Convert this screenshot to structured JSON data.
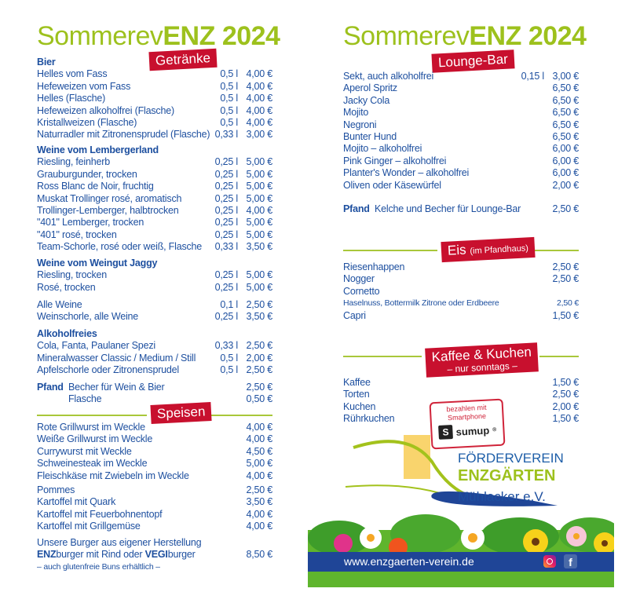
{
  "colors": {
    "title_green": "#9dc11d",
    "text_blue": "#1d4f9f",
    "banner_red": "#c8102e",
    "footer_blue": "#1f4597"
  },
  "left": {
    "title": {
      "light": "Sommerev",
      "bold": "ENZ 2024"
    },
    "banner_drinks": "Getränke",
    "banner_food": "Speisen",
    "groups": [
      {
        "heading": "Bier",
        "items": [
          {
            "name": "Helles vom Fass",
            "vol": "0,5 l",
            "price": "4,00 €"
          },
          {
            "name": "Hefeweizen vom Fass",
            "vol": "0,5 l",
            "price": "4,00 €"
          },
          {
            "name": "Helles (Flasche)",
            "vol": "0,5 l",
            "price": "4,00 €"
          },
          {
            "name": "Hefeweizen alkoholfrei (Flasche)",
            "vol": "0,5 l",
            "price": "4,00 €"
          },
          {
            "name": "Kristallweizen (Flasche)",
            "vol": "0,5 l",
            "price": "4,00 €"
          },
          {
            "name": "Naturradler mit Zitronensprudel (Flasche)",
            "vol": "0,33 l",
            "price": "3,00 €"
          }
        ]
      },
      {
        "heading": "Weine vom Lembergerland",
        "items": [
          {
            "name": "Riesling, feinherb",
            "vol": "0,25 l",
            "price": "5,00 €"
          },
          {
            "name": "Grauburgunder, trocken",
            "vol": "0,25 l",
            "price": "5,00 €"
          },
          {
            "name": "Ross Blanc de Noir, fruchtig",
            "vol": "0,25 l",
            "price": "5,00 €"
          },
          {
            "name": "Muskat Trollinger rosé, aromatisch",
            "vol": "0,25 l",
            "price": "5,00 €"
          },
          {
            "name": "Trollinger-Lemberger, halbtrocken",
            "vol": "0,25 l",
            "price": "4,00 €"
          },
          {
            "name": "\"401\" Lemberger, trocken",
            "vol": "0,25 l",
            "price": "5,00 €"
          },
          {
            "name": "\"401\" rosé, trocken",
            "vol": "0,25 l",
            "price": "5,00 €"
          },
          {
            "name": "Team-Schorle, rosé oder weiß, Flasche",
            "vol": "0,33 l",
            "price": "3,50 €"
          }
        ]
      },
      {
        "heading": "Weine vom Weingut Jaggy",
        "items": [
          {
            "name": "Riesling, trocken",
            "vol": "0,25 l",
            "price": "5,00 €"
          },
          {
            "name": "Rosé, trocken",
            "vol": "0,25 l",
            "price": "5,00 €"
          }
        ]
      },
      {
        "heading": "",
        "items": [
          {
            "name": "Alle Weine",
            "vol": "0,1 l",
            "price": "2,50 €"
          },
          {
            "name": "Weinschorle, alle Weine",
            "vol": "0,25 l",
            "price": "3,50 €"
          }
        ]
      },
      {
        "heading": "Alkoholfreies",
        "items": [
          {
            "name": "Cola, Fanta, Paulaner Spezi",
            "vol": "0,33 l",
            "price": "2,50 €"
          },
          {
            "name": "Mineralwasser Classic / Medium / Still",
            "vol": "0,5 l",
            "price": "2,00 €"
          },
          {
            "name": "Apfelschorle oder Zitronensprudel",
            "vol": "0,5 l",
            "price": "2,50 €"
          }
        ]
      }
    ],
    "pfand": {
      "label": "Pfand",
      "items": [
        {
          "name": "Becher für Wein & Bier",
          "price": "2,50 €"
        },
        {
          "name": "Flasche",
          "price": "0,50 €"
        }
      ]
    },
    "food_groups": [
      {
        "items": [
          {
            "name": "Rote Grillwurst im Weckle",
            "price": "4,00 €"
          },
          {
            "name": "Weiße Grillwurst im Weckle",
            "price": "4,00 €"
          },
          {
            "name": "Currywurst mit Weckle",
            "price": "4,50 €"
          },
          {
            "name": "Schweinesteak im Weckle",
            "price": "5,00 €"
          },
          {
            "name": "Fleischkäse mit Zwiebeln im Weckle",
            "price": "4,00 €"
          }
        ]
      },
      {
        "items": [
          {
            "name": "Pommes",
            "price": "2,50 €"
          },
          {
            "name": "Kartoffel mit Quark",
            "price": "3,50 €"
          },
          {
            "name": "Kartoffel mit Feuerbohnentopf",
            "price": "4,00 €"
          },
          {
            "name": "Kartoffel mit Grillgemüse",
            "price": "4,00 €"
          }
        ]
      }
    ],
    "burger": {
      "line1": "Unsere Burger aus eigener Herstellung",
      "enz": "ENZ",
      "mid": "burger mit Rind oder ",
      "vegi": "VEGI",
      "end": "burger",
      "price": "8,50 €",
      "note": "– auch glutenfreie Buns erhältlich –"
    }
  },
  "right": {
    "title": {
      "light": "Sommerev",
      "bold": "ENZ 2024"
    },
    "banner_lounge": "Lounge-Bar",
    "lounge_items": [
      {
        "name": "Sekt, auch alkoholfrei",
        "vol": "0,15 l",
        "price": "3,00 €"
      },
      {
        "name": "Aperol Spritz",
        "vol": "",
        "price": "6,50 €"
      },
      {
        "name": "Jacky Cola",
        "vol": "",
        "price": "6,50 €"
      },
      {
        "name": "Mojito",
        "vol": "",
        "price": "6,50 €"
      },
      {
        "name": "Negroni",
        "vol": "",
        "price": "6,50 €"
      },
      {
        "name": "Bunter Hund",
        "vol": "",
        "price": "6,50 €"
      },
      {
        "name": "Mojito – alkoholfrei",
        "vol": "",
        "price": "6,00 €"
      },
      {
        "name": "Pink Ginger – alkoholfrei",
        "vol": "",
        "price": "6,00 €"
      },
      {
        "name": "Planter's Wonder – alkoholfrei",
        "vol": "",
        "price": "6,00 €"
      },
      {
        "name": "Oliven oder Käsewürfel",
        "vol": "",
        "price": "2,00 €"
      }
    ],
    "pfand": {
      "label": "Pfand",
      "name": "Kelche und Becher für Lounge-Bar",
      "price": "2,50 €"
    },
    "banner_eis": {
      "main": "Eis",
      "sub": "(im Pfandhaus)"
    },
    "eis_items": [
      {
        "name": "Riesenhappen",
        "price": "2,50 €"
      },
      {
        "name": "Nogger",
        "price": "2,50 €"
      },
      {
        "name": "Cornetto",
        "price": ""
      },
      {
        "name": "Haselnuss, Bottermilk Zitrone oder Erdbeere",
        "price": "2,50 €",
        "small": true
      },
      {
        "name": "Capri",
        "price": "1,50 €"
      }
    ],
    "banner_kaffee": {
      "main": "Kaffee & Kuchen",
      "sub": "– nur sonntags –"
    },
    "kaffee_items": [
      {
        "name": "Kaffee",
        "price": "1,50 €"
      },
      {
        "name": "Torten",
        "price": "2,50 €"
      },
      {
        "name": "Kuchen",
        "price": "2,00 €"
      },
      {
        "name": "Rührkuchen",
        "price": "1,50 €"
      }
    ],
    "sumup": {
      "text1": "bezahlen mit",
      "text2": "Smartphone",
      "brand": "sumup",
      "mark": "®"
    },
    "verein": {
      "line1": "FÖRDERVEREIN",
      "line2": "ENZGÄRTEN",
      "line3": "Mühlacker e.V."
    },
    "footer": {
      "url": "www.enzgaerten-verein.de",
      "icons": [
        "instagram-icon",
        "facebook-icon"
      ]
    }
  }
}
